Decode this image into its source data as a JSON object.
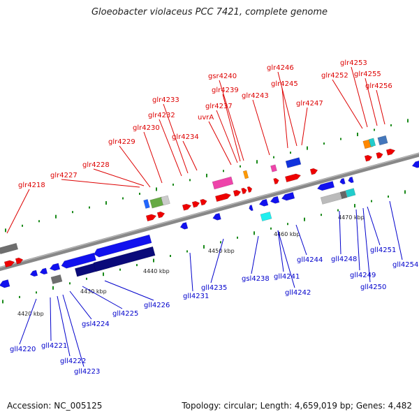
{
  "title": "Gloeobacter violaceus PCC 7421, complete genome",
  "footer": {
    "accession": "Accession: NC_005125",
    "summary": "Topology: circular; Length: 4,659,019 bp; Genes: 4,482"
  },
  "colors": {
    "forward_label": "#dd0000",
    "reverse_label": "#0000cc",
    "backbone": "#888888",
    "tick": "#1a8a1a"
  },
  "scale_labels": [
    "4420 kbp",
    "4430 kbp",
    "4440 kbp",
    "4450 kbp",
    "4460 kbp",
    "4470 kbp"
  ],
  "forward_genes": [
    "glr4218",
    "glr4227",
    "glr4228",
    "glr4229",
    "glr4230",
    "glr4232",
    "glr4233",
    "glr4234",
    "uvrA",
    "glr4237",
    "glr4239",
    "gsr4240",
    "glr4243",
    "glr4245",
    "glr4246",
    "glr4247",
    "glr4252",
    "glr4253",
    "glr4255",
    "glr4256"
  ],
  "reverse_genes": [
    "gll4220",
    "gll4221",
    "gll4222",
    "gll4223",
    "gsl4224",
    "gll4225",
    "gll4226",
    "gll4231",
    "gll4235",
    "gsl4238",
    "gll4241",
    "gll4242",
    "gll4244",
    "gll4248",
    "gll4249",
    "gll4250",
    "gll4251",
    "gll4254"
  ]
}
